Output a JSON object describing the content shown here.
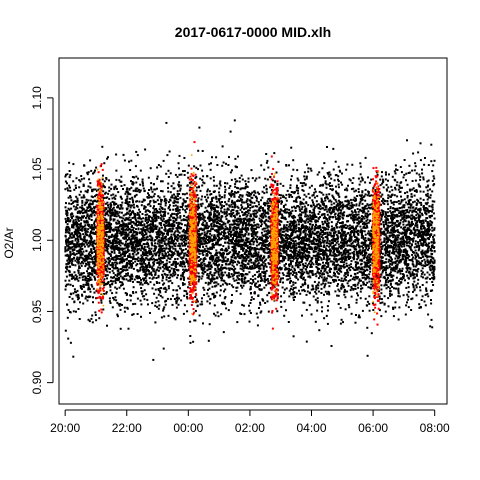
{
  "chart_data": {
    "type": "scatter",
    "title": "2017-0617-0000 MID.xlh",
    "xlabel": "",
    "ylabel": "O2/Ar",
    "x_start": "20:00",
    "x_end": "08:00",
    "xlim_hours": [
      19.8,
      32.4
    ],
    "ylim": [
      0.885,
      1.128
    ],
    "x_ticks": [
      {
        "label": "20:00",
        "hour": 20
      },
      {
        "label": "22:00",
        "hour": 22
      },
      {
        "label": "00:00",
        "hour": 24
      },
      {
        "label": "02:00",
        "hour": 26
      },
      {
        "label": "04:00",
        "hour": 28
      },
      {
        "label": "06:00",
        "hour": 30
      },
      {
        "label": "08:00",
        "hour": 32
      }
    ],
    "y_ticks": [
      {
        "label": "0.90",
        "value": 0.9
      },
      {
        "label": "0.95",
        "value": 0.95
      },
      {
        "label": "1.00",
        "value": 1.0
      },
      {
        "label": "1.05",
        "value": 1.05
      },
      {
        "label": "1.10",
        "value": 1.1
      }
    ],
    "series": [
      {
        "color": "#000000",
        "x_range_hours": [
          20.0,
          32.0
        ],
        "center": 1.0,
        "spread": 0.022
      },
      {
        "color": "#ff0000",
        "bands_hours": [
          21.15,
          24.15,
          26.8,
          30.1
        ],
        "center": 1.0,
        "spread": 0.02
      },
      {
        "color": "#ffa500",
        "bands_hours": [
          21.15,
          24.15,
          26.8,
          30.1
        ],
        "center": 1.0,
        "spread": 0.02
      }
    ],
    "grid": false,
    "legend": "none"
  }
}
